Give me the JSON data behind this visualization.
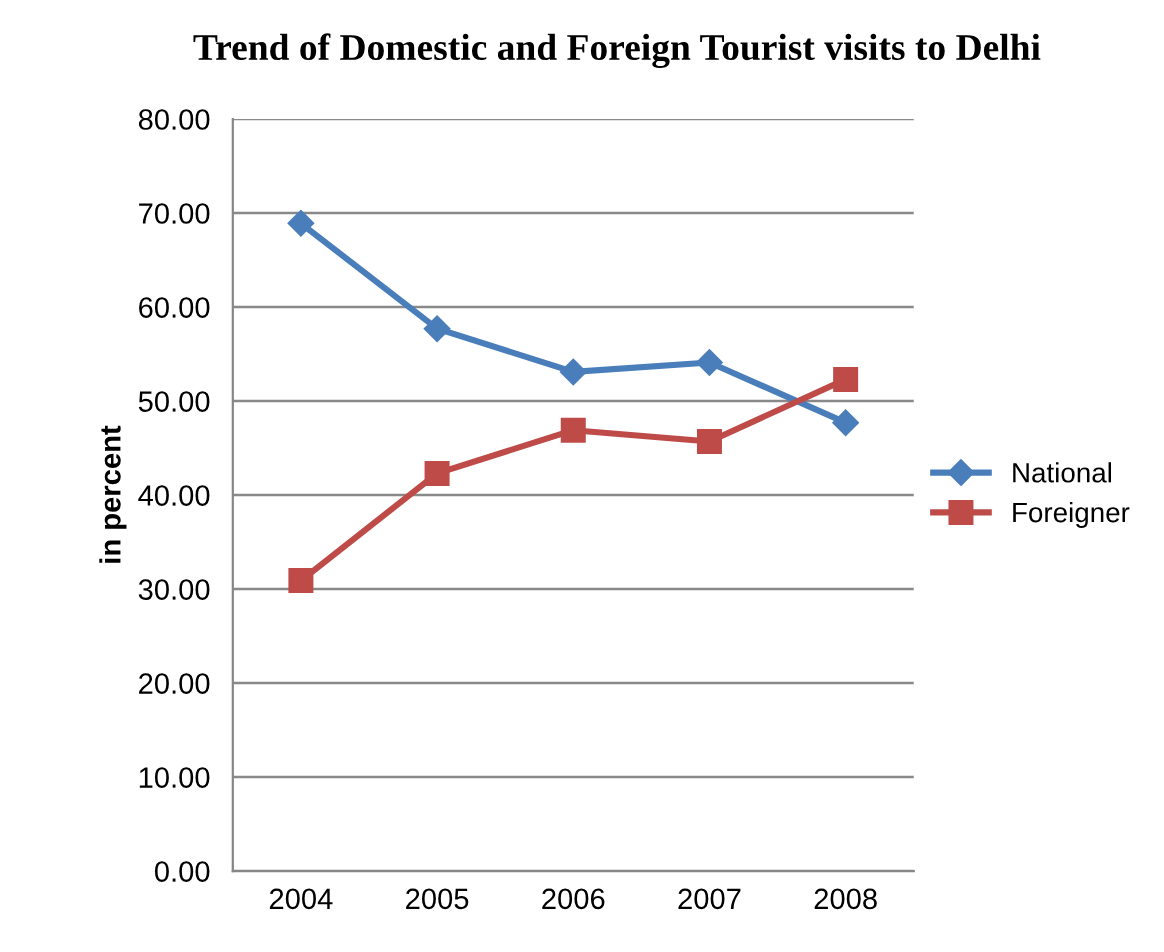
{
  "chart_data": {
    "type": "line",
    "title": "Trend of Domestic and Foreign Tourist visits to Delhi",
    "ylabel": "in percent",
    "categories": [
      "2004",
      "2005",
      "2006",
      "2007",
      "2008"
    ],
    "series": [
      {
        "name": "National",
        "color": "#4a7ebb",
        "marker": "diamond",
        "values": [
          68.9,
          57.7,
          53.1,
          54.1,
          47.7
        ]
      },
      {
        "name": "Foreigner",
        "color": "#be4b48",
        "marker": "square",
        "values": [
          30.9,
          42.3,
          46.9,
          45.7,
          52.3
        ]
      }
    ],
    "ylim": [
      0,
      80
    ],
    "yticks": [
      {
        "value": 0,
        "label": "0.00"
      },
      {
        "value": 10,
        "label": "10.00"
      },
      {
        "value": 20,
        "label": "20.00"
      },
      {
        "value": 30,
        "label": "30.00"
      },
      {
        "value": 40,
        "label": "40.00"
      },
      {
        "value": 50,
        "label": "50.00"
      },
      {
        "value": 60,
        "label": "60.00"
      },
      {
        "value": 70,
        "label": "70.00"
      },
      {
        "value": 80,
        "label": "80.00"
      }
    ],
    "grid": "y",
    "legend": "right",
    "line_style": "solid"
  }
}
